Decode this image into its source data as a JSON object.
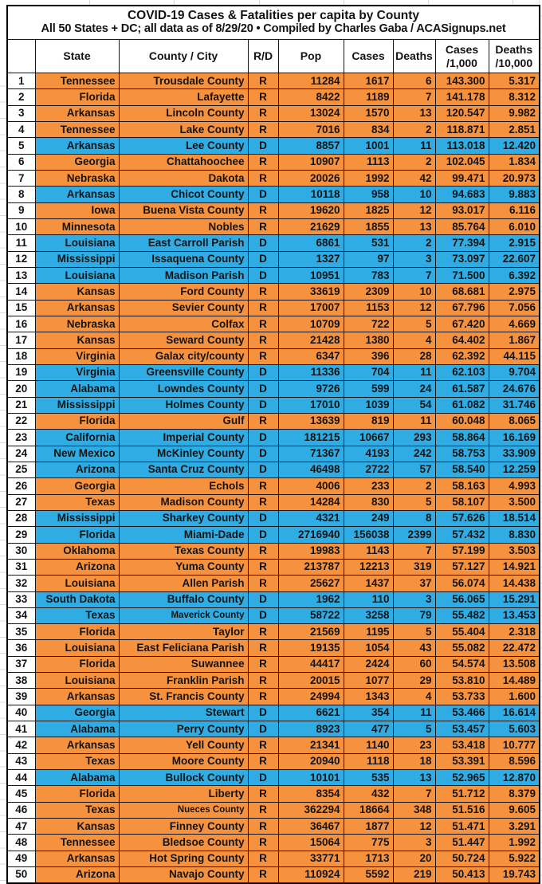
{
  "title": "COVID-19 Cases & Fatalities per capita by County",
  "subtitle": "All 50 States + DC; all data as of 8/29/20 • Compiled by Charles Gaba / ACASignups.net",
  "header": {
    "rank": "",
    "state": "State",
    "county": "County / City",
    "rd": "R/D",
    "pop": "Pop",
    "cases": "Cases",
    "deaths": "Deaths",
    "cases_rate1": "Cases",
    "cases_rate2": "/1,000",
    "deaths_rate1": "Deaths",
    "deaths_rate2": "/10,000"
  },
  "colors": {
    "republican_row": "#F6923E",
    "democrat_row": "#2EACE3",
    "text": "#141414"
  },
  "chart_data": {
    "type": "table",
    "title": "COVID-19 Cases & Fatalities per capita by County",
    "columns": [
      "#",
      "State",
      "County / City",
      "R/D",
      "Pop",
      "Cases",
      "Deaths",
      "Cases /1,000",
      "Deaths /10,000"
    ],
    "rows": [
      {
        "rank": "1",
        "state": "Tennessee",
        "county": "Trousdale County",
        "party": "R",
        "pop": "11284",
        "cases": "1617",
        "deaths": "6",
        "cases_per_1000": "143.300",
        "deaths_per_10000": "5.317"
      },
      {
        "rank": "2",
        "state": "Florida",
        "county": "Lafayette",
        "party": "R",
        "pop": "8422",
        "cases": "1189",
        "deaths": "7",
        "cases_per_1000": "141.178",
        "deaths_per_10000": "8.312"
      },
      {
        "rank": "3",
        "state": "Arkansas",
        "county": "Lincoln County",
        "party": "R",
        "pop": "13024",
        "cases": "1570",
        "deaths": "13",
        "cases_per_1000": "120.547",
        "deaths_per_10000": "9.982"
      },
      {
        "rank": "4",
        "state": "Tennessee",
        "county": "Lake County",
        "party": "R",
        "pop": "7016",
        "cases": "834",
        "deaths": "2",
        "cases_per_1000": "118.871",
        "deaths_per_10000": "2.851"
      },
      {
        "rank": "5",
        "state": "Arkansas",
        "county": "Lee County",
        "party": "D",
        "pop": "8857",
        "cases": "1001",
        "deaths": "11",
        "cases_per_1000": "113.018",
        "deaths_per_10000": "12.420"
      },
      {
        "rank": "6",
        "state": "Georgia",
        "county": "Chattahoochee",
        "party": "R",
        "pop": "10907",
        "cases": "1113",
        "deaths": "2",
        "cases_per_1000": "102.045",
        "deaths_per_10000": "1.834"
      },
      {
        "rank": "7",
        "state": "Nebraska",
        "county": "Dakota",
        "party": "R",
        "pop": "20026",
        "cases": "1992",
        "deaths": "42",
        "cases_per_1000": "99.471",
        "deaths_per_10000": "20.973"
      },
      {
        "rank": "8",
        "state": "Arkansas",
        "county": "Chicot County",
        "party": "D",
        "pop": "10118",
        "cases": "958",
        "deaths": "10",
        "cases_per_1000": "94.683",
        "deaths_per_10000": "9.883"
      },
      {
        "rank": "9",
        "state": "Iowa",
        "county": "Buena Vista County",
        "party": "R",
        "pop": "19620",
        "cases": "1825",
        "deaths": "12",
        "cases_per_1000": "93.017",
        "deaths_per_10000": "6.116"
      },
      {
        "rank": "10",
        "state": "Minnesota",
        "county": "Nobles",
        "party": "R",
        "pop": "21629",
        "cases": "1855",
        "deaths": "13",
        "cases_per_1000": "85.764",
        "deaths_per_10000": "6.010"
      },
      {
        "rank": "11",
        "state": "Louisiana",
        "county": "East Carroll Parish",
        "party": "D",
        "pop": "6861",
        "cases": "531",
        "deaths": "2",
        "cases_per_1000": "77.394",
        "deaths_per_10000": "2.915"
      },
      {
        "rank": "12",
        "state": "Mississippi",
        "county": "Issaquena County",
        "party": "D",
        "pop": "1327",
        "cases": "97",
        "deaths": "3",
        "cases_per_1000": "73.097",
        "deaths_per_10000": "22.607"
      },
      {
        "rank": "13",
        "state": "Louisiana",
        "county": "Madison Parish",
        "party": "D",
        "pop": "10951",
        "cases": "783",
        "deaths": "7",
        "cases_per_1000": "71.500",
        "deaths_per_10000": "6.392"
      },
      {
        "rank": "14",
        "state": "Kansas",
        "county": "Ford County",
        "party": "R",
        "pop": "33619",
        "cases": "2309",
        "deaths": "10",
        "cases_per_1000": "68.681",
        "deaths_per_10000": "2.975"
      },
      {
        "rank": "15",
        "state": "Arkansas",
        "county": "Sevier County",
        "party": "R",
        "pop": "17007",
        "cases": "1153",
        "deaths": "12",
        "cases_per_1000": "67.796",
        "deaths_per_10000": "7.056"
      },
      {
        "rank": "16",
        "state": "Nebraska",
        "county": "Colfax",
        "party": "R",
        "pop": "10709",
        "cases": "722",
        "deaths": "5",
        "cases_per_1000": "67.420",
        "deaths_per_10000": "4.669"
      },
      {
        "rank": "17",
        "state": "Kansas",
        "county": "Seward County",
        "party": "R",
        "pop": "21428",
        "cases": "1380",
        "deaths": "4",
        "cases_per_1000": "64.402",
        "deaths_per_10000": "1.867"
      },
      {
        "rank": "18",
        "state": "Virginia",
        "county": "Galax city/county",
        "party": "R",
        "pop": "6347",
        "cases": "396",
        "deaths": "28",
        "cases_per_1000": "62.392",
        "deaths_per_10000": "44.115"
      },
      {
        "rank": "19",
        "state": "Virginia",
        "county": "Greensville County",
        "party": "D",
        "pop": "11336",
        "cases": "704",
        "deaths": "11",
        "cases_per_1000": "62.103",
        "deaths_per_10000": "9.704"
      },
      {
        "rank": "20",
        "state": "Alabama",
        "county": "Lowndes County",
        "party": "D",
        "pop": "9726",
        "cases": "599",
        "deaths": "24",
        "cases_per_1000": "61.587",
        "deaths_per_10000": "24.676"
      },
      {
        "rank": "21",
        "state": "Mississippi",
        "county": "Holmes County",
        "party": "D",
        "pop": "17010",
        "cases": "1039",
        "deaths": "54",
        "cases_per_1000": "61.082",
        "deaths_per_10000": "31.746"
      },
      {
        "rank": "22",
        "state": "Florida",
        "county": "Gulf",
        "party": "R",
        "pop": "13639",
        "cases": "819",
        "deaths": "11",
        "cases_per_1000": "60.048",
        "deaths_per_10000": "8.065"
      },
      {
        "rank": "23",
        "state": "California",
        "county": "Imperial County",
        "party": "D",
        "pop": "181215",
        "cases": "10667",
        "deaths": "293",
        "cases_per_1000": "58.864",
        "deaths_per_10000": "16.169"
      },
      {
        "rank": "24",
        "state": "New Mexico",
        "county": "McKinley County",
        "party": "D",
        "pop": "71367",
        "cases": "4193",
        "deaths": "242",
        "cases_per_1000": "58.753",
        "deaths_per_10000": "33.909"
      },
      {
        "rank": "25",
        "state": "Arizona",
        "county": "Santa Cruz County",
        "party": "D",
        "pop": "46498",
        "cases": "2722",
        "deaths": "57",
        "cases_per_1000": "58.540",
        "deaths_per_10000": "12.259"
      },
      {
        "rank": "26",
        "state": "Georgia",
        "county": "Echols",
        "party": "R",
        "pop": "4006",
        "cases": "233",
        "deaths": "2",
        "cases_per_1000": "58.163",
        "deaths_per_10000": "4.993"
      },
      {
        "rank": "27",
        "state": "Texas",
        "county": "Madison County",
        "party": "R",
        "pop": "14284",
        "cases": "830",
        "deaths": "5",
        "cases_per_1000": "58.107",
        "deaths_per_10000": "3.500"
      },
      {
        "rank": "28",
        "state": "Mississippi",
        "county": "Sharkey County",
        "party": "D",
        "pop": "4321",
        "cases": "249",
        "deaths": "8",
        "cases_per_1000": "57.626",
        "deaths_per_10000": "18.514"
      },
      {
        "rank": "29",
        "state": "Florida",
        "county": "Miami-Dade",
        "party": "D",
        "pop": "2716940",
        "cases": "156038",
        "deaths": "2399",
        "cases_per_1000": "57.432",
        "deaths_per_10000": "8.830"
      },
      {
        "rank": "30",
        "state": "Oklahoma",
        "county": "Texas County",
        "party": "R",
        "pop": "19983",
        "cases": "1143",
        "deaths": "7",
        "cases_per_1000": "57.199",
        "deaths_per_10000": "3.503"
      },
      {
        "rank": "31",
        "state": "Arizona",
        "county": "Yuma County",
        "party": "R",
        "pop": "213787",
        "cases": "12213",
        "deaths": "319",
        "cases_per_1000": "57.127",
        "deaths_per_10000": "14.921"
      },
      {
        "rank": "32",
        "state": "Louisiana",
        "county": "Allen Parish",
        "party": "R",
        "pop": "25627",
        "cases": "1437",
        "deaths": "37",
        "cases_per_1000": "56.074",
        "deaths_per_10000": "14.438"
      },
      {
        "rank": "33",
        "state": "South Dakota",
        "county": "Buffalo County",
        "party": "D",
        "pop": "1962",
        "cases": "110",
        "deaths": "3",
        "cases_per_1000": "56.065",
        "deaths_per_10000": "15.291"
      },
      {
        "rank": "34",
        "state": "Texas",
        "county": "Maverick County",
        "party": "D",
        "pop": "58722",
        "cases": "3258",
        "deaths": "79",
        "cases_per_1000": "55.482",
        "deaths_per_10000": "13.453",
        "condensed": true
      },
      {
        "rank": "35",
        "state": "Florida",
        "county": "Taylor",
        "party": "R",
        "pop": "21569",
        "cases": "1195",
        "deaths": "5",
        "cases_per_1000": "55.404",
        "deaths_per_10000": "2.318"
      },
      {
        "rank": "36",
        "state": "Louisiana",
        "county": "East Feliciana Parish",
        "party": "R",
        "pop": "19135",
        "cases": "1054",
        "deaths": "43",
        "cases_per_1000": "55.082",
        "deaths_per_10000": "22.472"
      },
      {
        "rank": "37",
        "state": "Florida",
        "county": "Suwannee",
        "party": "R",
        "pop": "44417",
        "cases": "2424",
        "deaths": "60",
        "cases_per_1000": "54.574",
        "deaths_per_10000": "13.508"
      },
      {
        "rank": "38",
        "state": "Louisiana",
        "county": "Franklin Parish",
        "party": "R",
        "pop": "20015",
        "cases": "1077",
        "deaths": "29",
        "cases_per_1000": "53.810",
        "deaths_per_10000": "14.489"
      },
      {
        "rank": "39",
        "state": "Arkansas",
        "county": "St. Francis County",
        "party": "R",
        "pop": "24994",
        "cases": "1343",
        "deaths": "4",
        "cases_per_1000": "53.733",
        "deaths_per_10000": "1.600"
      },
      {
        "rank": "40",
        "state": "Georgia",
        "county": "Stewart",
        "party": "D",
        "pop": "6621",
        "cases": "354",
        "deaths": "11",
        "cases_per_1000": "53.466",
        "deaths_per_10000": "16.614"
      },
      {
        "rank": "41",
        "state": "Alabama",
        "county": "Perry County",
        "party": "D",
        "pop": "8923",
        "cases": "477",
        "deaths": "5",
        "cases_per_1000": "53.457",
        "deaths_per_10000": "5.603"
      },
      {
        "rank": "42",
        "state": "Arkansas",
        "county": "Yell County",
        "party": "R",
        "pop": "21341",
        "cases": "1140",
        "deaths": "23",
        "cases_per_1000": "53.418",
        "deaths_per_10000": "10.777"
      },
      {
        "rank": "43",
        "state": "Texas",
        "county": "Moore County",
        "party": "R",
        "pop": "20940",
        "cases": "1118",
        "deaths": "18",
        "cases_per_1000": "53.391",
        "deaths_per_10000": "8.596"
      },
      {
        "rank": "44",
        "state": "Alabama",
        "county": "Bullock County",
        "party": "D",
        "pop": "10101",
        "cases": "535",
        "deaths": "13",
        "cases_per_1000": "52.965",
        "deaths_per_10000": "12.870"
      },
      {
        "rank": "45",
        "state": "Florida",
        "county": "Liberty",
        "party": "R",
        "pop": "8354",
        "cases": "432",
        "deaths": "7",
        "cases_per_1000": "51.712",
        "deaths_per_10000": "8.379"
      },
      {
        "rank": "46",
        "state": "Texas",
        "county": "Nueces County",
        "party": "R",
        "pop": "362294",
        "cases": "18664",
        "deaths": "348",
        "cases_per_1000": "51.516",
        "deaths_per_10000": "9.605",
        "condensed": true
      },
      {
        "rank": "47",
        "state": "Kansas",
        "county": "Finney County",
        "party": "R",
        "pop": "36467",
        "cases": "1877",
        "deaths": "12",
        "cases_per_1000": "51.471",
        "deaths_per_10000": "3.291"
      },
      {
        "rank": "48",
        "state": "Tennessee",
        "county": "Bledsoe County",
        "party": "R",
        "pop": "15064",
        "cases": "775",
        "deaths": "3",
        "cases_per_1000": "51.447",
        "deaths_per_10000": "1.992"
      },
      {
        "rank": "49",
        "state": "Arkansas",
        "county": "Hot Spring County",
        "party": "R",
        "pop": "33771",
        "cases": "1713",
        "deaths": "20",
        "cases_per_1000": "50.724",
        "deaths_per_10000": "5.922"
      },
      {
        "rank": "50",
        "state": "Arizona",
        "county": "Navajo County",
        "party": "R",
        "pop": "110924",
        "cases": "5592",
        "deaths": "219",
        "cases_per_1000": "50.413",
        "deaths_per_10000": "19.743"
      }
    ]
  }
}
